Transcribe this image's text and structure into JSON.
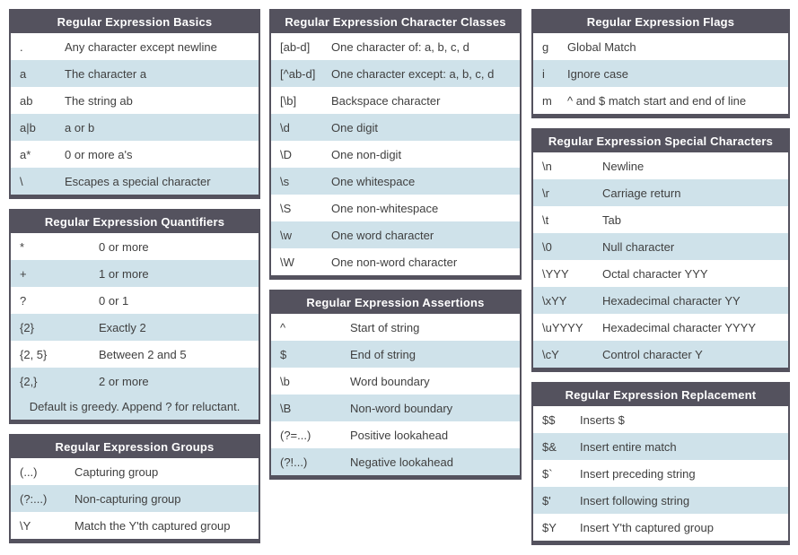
{
  "colors": {
    "header_bg": "#54525e",
    "border": "#54525e",
    "row_alt_bg": "#cfe2ea",
    "row_bg": "#ffffff",
    "header_text": "#ffffff",
    "row_text": "#3f3f3f",
    "page_bg": "#ffffff"
  },
  "columns": [
    {
      "name": "left",
      "tables": [
        {
          "id": "basics",
          "title": "Regular Expression Basics",
          "rows": [
            {
              "symbol": ".",
              "description": "Any character except newline"
            },
            {
              "symbol": "a",
              "description": "The character a"
            },
            {
              "symbol": "ab",
              "description": "The string ab"
            },
            {
              "symbol": "a|b",
              "description": "a or b"
            },
            {
              "symbol": "a*",
              "description": "0 or more a's"
            },
            {
              "symbol": "\\",
              "description": "Escapes a special character"
            }
          ]
        },
        {
          "id": "quantifiers",
          "title": "Regular Expression Quantifiers",
          "rows": [
            {
              "symbol": "*",
              "description": "0 or more"
            },
            {
              "symbol": "+",
              "description": "1 or more"
            },
            {
              "symbol": "?",
              "description": "0 or 1"
            },
            {
              "symbol": "{2}",
              "description": "Exactly 2"
            },
            {
              "symbol": "{2, 5}",
              "description": "Between 2 and 5"
            },
            {
              "symbol": "{2,}",
              "description": "2 or more"
            }
          ],
          "footer": "Default is greedy. Append ? for reluctant."
        },
        {
          "id": "groups",
          "title": "Regular Expression Groups",
          "rows": [
            {
              "symbol": "(...)",
              "description": "Capturing group"
            },
            {
              "symbol": "(?:...)",
              "description": "Non-capturing group"
            },
            {
              "symbol": "\\Y",
              "description": "Match the Y'th captured group"
            }
          ]
        }
      ]
    },
    {
      "name": "middle",
      "tables": [
        {
          "id": "character-classes",
          "title": "Regular Expression Character Classes",
          "rows": [
            {
              "symbol": "[ab-d]",
              "description": "One character of: a, b, c, d"
            },
            {
              "symbol": "[^ab-d]",
              "description": "One character except: a, b, c, d"
            },
            {
              "symbol": "[\\b]",
              "description": "Backspace character"
            },
            {
              "symbol": "\\d",
              "description": "One digit"
            },
            {
              "symbol": "\\D",
              "description": "One non-digit"
            },
            {
              "symbol": "\\s",
              "description": "One whitespace"
            },
            {
              "symbol": "\\S",
              "description": "One non-whitespace"
            },
            {
              "symbol": "\\w",
              "description": "One word character"
            },
            {
              "symbol": "\\W",
              "description": "One non-word character"
            }
          ]
        },
        {
          "id": "assertions",
          "title": "Regular Expression Assertions",
          "rows": [
            {
              "symbol": "^",
              "description": "Start of string"
            },
            {
              "symbol": "$",
              "description": "End of string"
            },
            {
              "symbol": "\\b",
              "description": "Word boundary"
            },
            {
              "symbol": "\\B",
              "description": "Non-word boundary"
            },
            {
              "symbol": "(?=...)",
              "description": "Positive lookahead"
            },
            {
              "symbol": "(?!...)",
              "description": "Negative lookahead"
            }
          ]
        }
      ]
    },
    {
      "name": "right",
      "tables": [
        {
          "id": "flags",
          "title": "Regular Expression Flags",
          "rows": [
            {
              "symbol": "g",
              "description": "Global Match"
            },
            {
              "symbol": "i",
              "description": "Ignore case"
            },
            {
              "symbol": "m",
              "description": "^ and $ match start and end of line"
            }
          ]
        },
        {
          "id": "special-characters",
          "title": "Regular Expression Special Characters",
          "rows": [
            {
              "symbol": "\\n",
              "description": "Newline"
            },
            {
              "symbol": "\\r",
              "description": "Carriage return"
            },
            {
              "symbol": "\\t",
              "description": "Tab"
            },
            {
              "symbol": "\\0",
              "description": "Null character"
            },
            {
              "symbol": "\\YYY",
              "description": "Octal character YYY"
            },
            {
              "symbol": "\\xYY",
              "description": "Hexadecimal character YY"
            },
            {
              "symbol": "\\uYYYY",
              "description": "Hexadecimal character YYYY"
            },
            {
              "symbol": "\\cY",
              "description": "Control character Y"
            }
          ]
        },
        {
          "id": "replacement",
          "title": "Regular Expression Replacement",
          "rows": [
            {
              "symbol": "$$",
              "description": "Inserts $"
            },
            {
              "symbol": "$&",
              "description": "Insert entire match"
            },
            {
              "symbol": "$`",
              "description": "Insert preceding string"
            },
            {
              "symbol": "$'",
              "description": "Insert following string"
            },
            {
              "symbol": "$Y",
              "description": "Insert Y'th captured group"
            }
          ]
        }
      ]
    }
  ]
}
